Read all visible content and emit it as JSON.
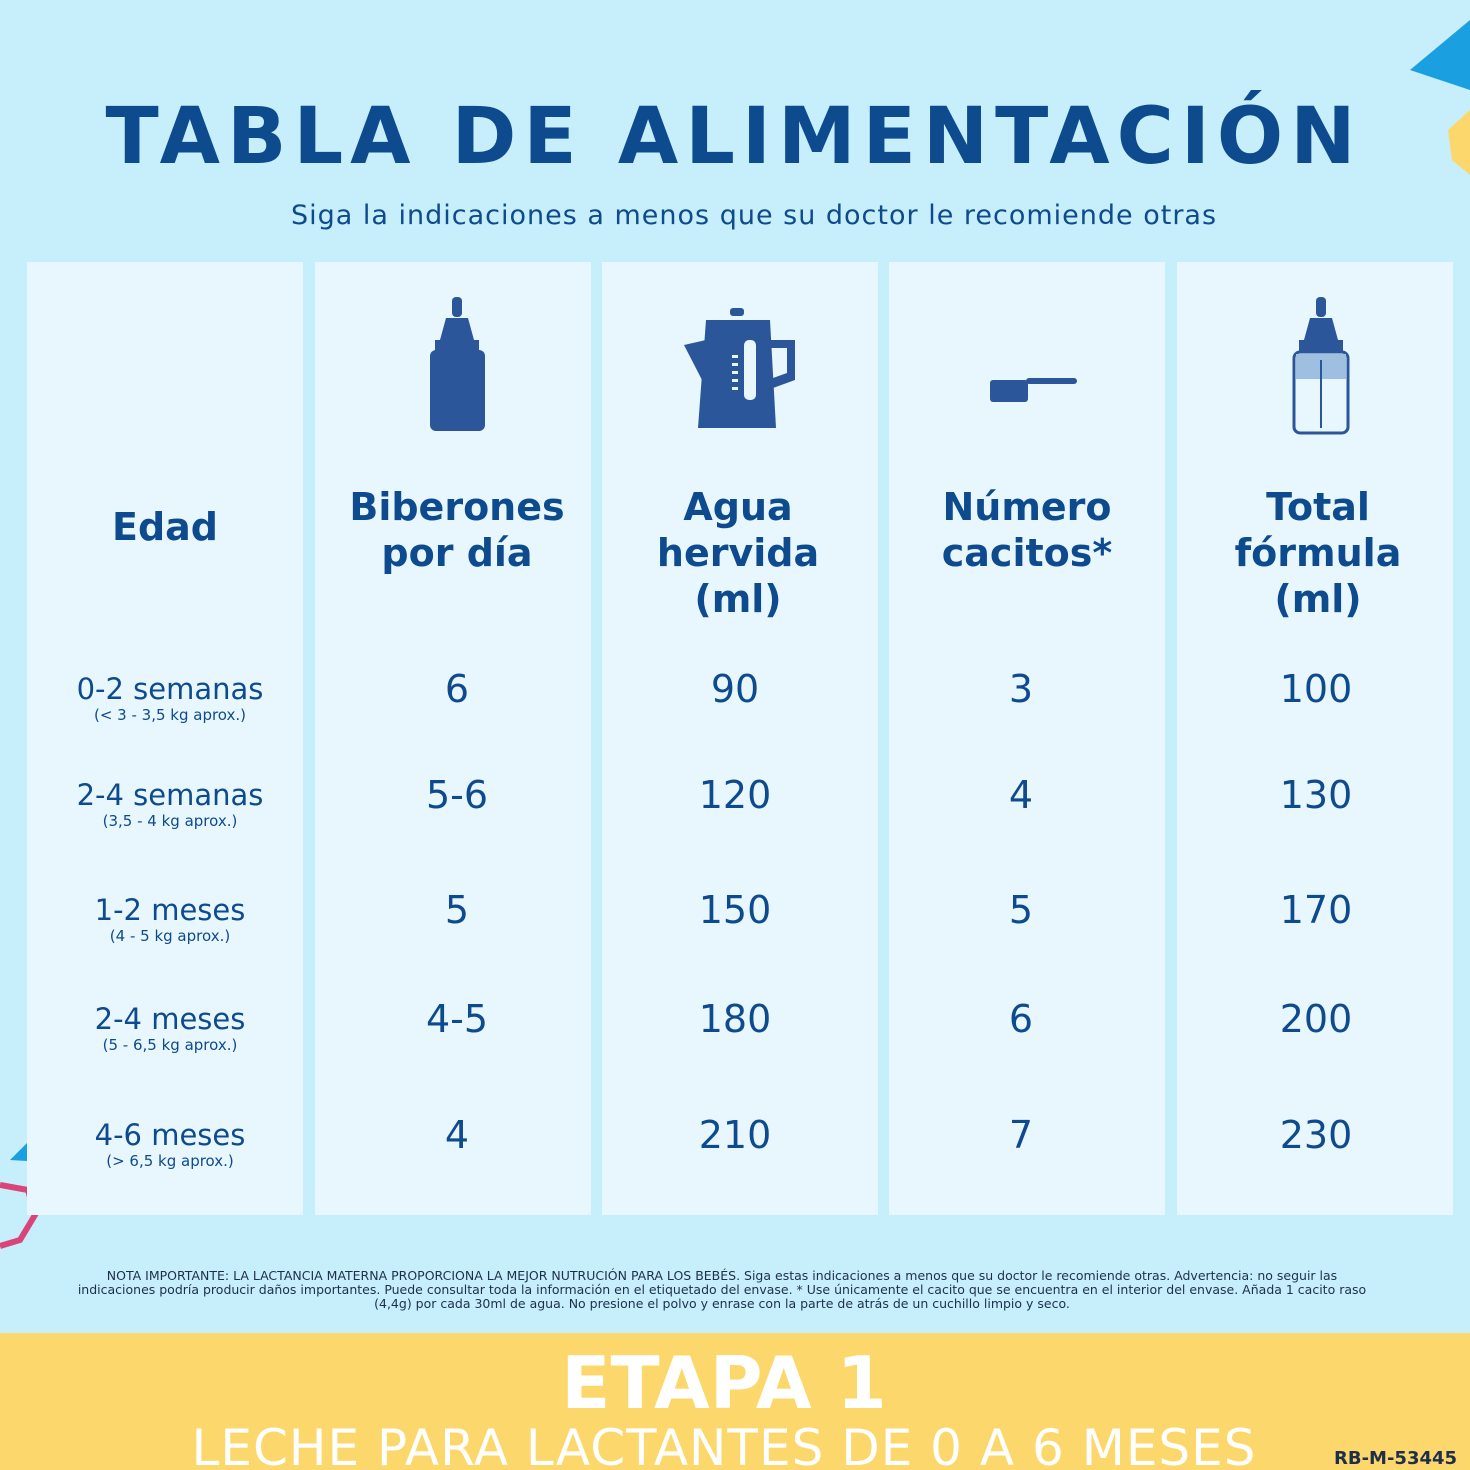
{
  "header": {
    "title": "TABLA DE ALIMENTACIÓN",
    "subtitle": "Siga la indicaciones a menos que su doctor le recomiende otras"
  },
  "table": {
    "columns": [
      [
        "Edad"
      ],
      [
        "Biberones",
        "por día"
      ],
      [
        "Agua",
        "hervida",
        "(ml)"
      ],
      [
        "Número",
        "cacitos*"
      ],
      [
        "Total",
        "fórmula",
        "(ml)"
      ]
    ],
    "rows": [
      {
        "age": "0-2 semanas",
        "weight": "(< 3 - 3,5 kg aprox.)",
        "cells": [
          "6",
          "90",
          "3",
          "100"
        ]
      },
      {
        "age": "2-4 semanas",
        "weight": "(3,5 - 4 kg aprox.)",
        "cells": [
          "5-6",
          "120",
          "4",
          "130"
        ]
      },
      {
        "age": "1-2 meses",
        "weight": "(4 - 5 kg aprox.)",
        "cells": [
          "5",
          "150",
          "5",
          "170"
        ]
      },
      {
        "age": "2-4 meses",
        "weight": "(5 - 6,5 kg aprox.)",
        "cells": [
          "4-5",
          "180",
          "6",
          "200"
        ]
      },
      {
        "age": "4-6 meses",
        "weight": "(> 6,5 kg aprox.)",
        "cells": [
          "4",
          "210",
          "7",
          "230"
        ]
      }
    ]
  },
  "note": "NOTA IMPORTANTE: LA LACTANCIA MATERNA PROPORCIONA LA MEJOR NUTRUCIÓN PARA LOS BEBÉS. Siga estas indicaciones a menos que su doctor le recomiende otras. Advertencia: no seguir las indicaciones podría producir daños importantes. Puede consultar toda la información en el etiquetado del envase. * Use únicamente el cacito que se encuentra en el interior del envase. Añada 1 cacito raso (4,4g) por cada 30ml de agua. No presione el polvo y enrase con la parte de atrás de un cuchillo limpio y seco.",
  "footer": {
    "stage": "ETAPA 1",
    "description": "LECHE PARA LACTANTES DE 0 A 6 MESES",
    "code": "RB-M-53445"
  }
}
